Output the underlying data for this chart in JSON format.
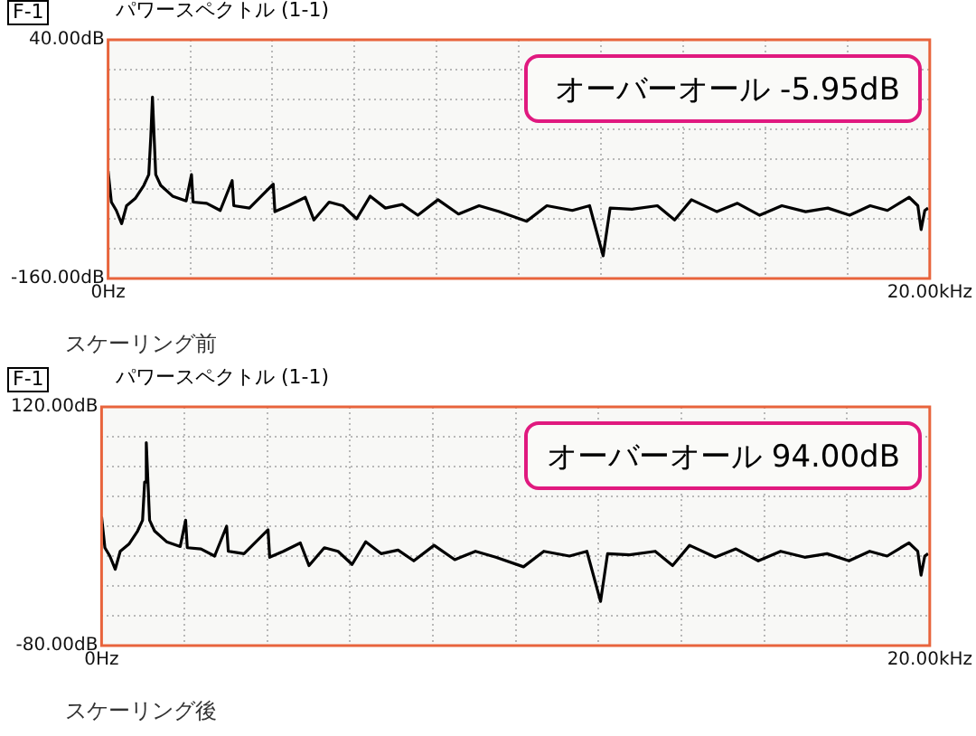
{
  "chart_data": [
    {
      "type": "line",
      "title": "パワースペクトル (1-1)",
      "subtitle": "スケーリング前",
      "annotations": [
        "F-1",
        "オーバーオール -5.95dB"
      ],
      "grid": true,
      "marker": "none",
      "xlim": [
        0,
        20
      ],
      "xticks": [
        {
          "value": 0,
          "label": "0Hz"
        },
        {
          "value": 2,
          "label": null
        },
        {
          "value": 4,
          "label": null
        },
        {
          "value": 6,
          "label": null
        },
        {
          "value": 8,
          "label": null
        },
        {
          "value": 10,
          "label": null
        },
        {
          "value": 12,
          "label": null
        },
        {
          "value": 14,
          "label": null
        },
        {
          "value": 16,
          "label": null
        },
        {
          "value": 18,
          "label": null
        },
        {
          "value": 20,
          "label": "20.00kHz"
        }
      ],
      "ylim": [
        -160,
        40
      ],
      "yticks": [
        {
          "value": -160,
          "label": "-160.00dB"
        },
        {
          "value": -135,
          "label": null
        },
        {
          "value": -110,
          "label": null
        },
        {
          "value": -85,
          "label": null
        },
        {
          "value": -60,
          "label": null
        },
        {
          "value": -35,
          "label": null
        },
        {
          "value": -10,
          "label": null
        },
        {
          "value": 15,
          "label": null
        },
        {
          "value": 40,
          "label": "40.00dB"
        }
      ],
      "x": [
        0,
        0.08,
        0.2,
        0.33,
        0.45,
        0.66,
        0.87,
        0.99,
        1.04,
        1.08,
        1.12,
        1.16,
        1.28,
        1.57,
        1.9,
        2.03,
        2.07,
        2.4,
        2.73,
        3.02,
        3.06,
        3.44,
        4.02,
        4.06,
        4.39,
        4.8,
        5.01,
        5.38,
        5.71,
        6.05,
        6.38,
        6.75,
        7.16,
        7.54,
        8.03,
        8.53,
        9.03,
        9.52,
        10.19,
        10.68,
        11.3,
        11.72,
        12.05,
        12.22,
        12.75,
        13.37,
        13.79,
        14.2,
        14.82,
        15.32,
        15.86,
        16.4,
        16.98,
        17.52,
        18.05,
        18.55,
        18.97,
        19.3,
        19.5,
        19.71,
        19.79,
        19.88,
        19.96
      ],
      "series": [
        {
          "color": "#000000",
          "values": [
            -70,
            -96,
            -103,
            -114,
            -99,
            -93,
            -82,
            -73,
            -41,
            -8,
            -41,
            -73,
            -82,
            -91,
            -95,
            -73,
            -96,
            -97,
            -103,
            -78,
            -99,
            -101,
            -81,
            -104,
            -99,
            -92,
            -111,
            -96,
            -99,
            -110,
            -91,
            -101,
            -98,
            -107,
            -94,
            -106,
            -99,
            -104,
            -112,
            -99,
            -103,
            -99,
            -141,
            -101,
            -102,
            -99,
            -111,
            -94,
            -104,
            -97,
            -107,
            -99,
            -104,
            -101,
            -107,
            -99,
            -103,
            -96,
            -92,
            -99,
            -119,
            -103,
            -101
          ]
        }
      ]
    },
    {
      "type": "line",
      "title": "パワースペクトル (1-1)",
      "subtitle": "スケーリング後",
      "annotations": [
        "F-1",
        "オーバーオール 94.00dB"
      ],
      "grid": true,
      "marker": "none",
      "xlim": [
        0,
        20
      ],
      "xticks": [
        {
          "value": 0,
          "label": "0Hz"
        },
        {
          "value": 2,
          "label": null
        },
        {
          "value": 4,
          "label": null
        },
        {
          "value": 6,
          "label": null
        },
        {
          "value": 8,
          "label": null
        },
        {
          "value": 10,
          "label": null
        },
        {
          "value": 12,
          "label": null
        },
        {
          "value": 14,
          "label": null
        },
        {
          "value": 16,
          "label": null
        },
        {
          "value": 18,
          "label": null
        },
        {
          "value": 20,
          "label": "20.00kHz"
        }
      ],
      "ylim": [
        -80,
        120
      ],
      "yticks": [
        {
          "value": -80,
          "label": "-80.00dB"
        },
        {
          "value": -55,
          "label": null
        },
        {
          "value": -30,
          "label": null
        },
        {
          "value": -5,
          "label": null
        },
        {
          "value": 20,
          "label": null
        },
        {
          "value": 45,
          "label": null
        },
        {
          "value": 70,
          "label": null
        },
        {
          "value": 95,
          "label": null
        },
        {
          "value": 120,
          "label": "120.00dB"
        }
      ],
      "x": [
        0,
        0.08,
        0.2,
        0.33,
        0.45,
        0.66,
        0.87,
        0.99,
        1.04,
        1.08,
        1.12,
        1.16,
        1.28,
        1.57,
        1.9,
        2.03,
        2.07,
        2.4,
        2.73,
        3.02,
        3.06,
        3.44,
        4.02,
        4.06,
        4.39,
        4.8,
        5.01,
        5.38,
        5.71,
        6.05,
        6.38,
        6.75,
        7.16,
        7.54,
        8.03,
        8.53,
        9.03,
        9.52,
        10.19,
        10.68,
        11.3,
        11.72,
        12.05,
        12.22,
        12.75,
        13.37,
        13.79,
        14.2,
        14.82,
        15.32,
        15.86,
        16.4,
        16.98,
        17.52,
        18.05,
        18.55,
        18.97,
        19.3,
        19.5,
        19.71,
        19.79,
        19.88,
        19.96
      ],
      "series": [
        {
          "color": "#000000",
          "values": [
            28,
            2,
            -5,
            -16,
            -1,
            5,
            16,
            25,
            57,
            90,
            57,
            25,
            16,
            7,
            3,
            25,
            2,
            1,
            -5,
            20,
            -1,
            -3,
            17,
            -6,
            -1,
            6,
            -13,
            2,
            -1,
            -12,
            7,
            -3,
            0,
            -9,
            4,
            -8,
            -1,
            -6,
            -14,
            -1,
            -5,
            -1,
            -43,
            -3,
            -4,
            -1,
            -13,
            4,
            -6,
            1,
            -9,
            -1,
            -6,
            -3,
            -9,
            -1,
            -5,
            2,
            6,
            -1,
            -21,
            -5,
            -3
          ]
        }
      ]
    }
  ]
}
